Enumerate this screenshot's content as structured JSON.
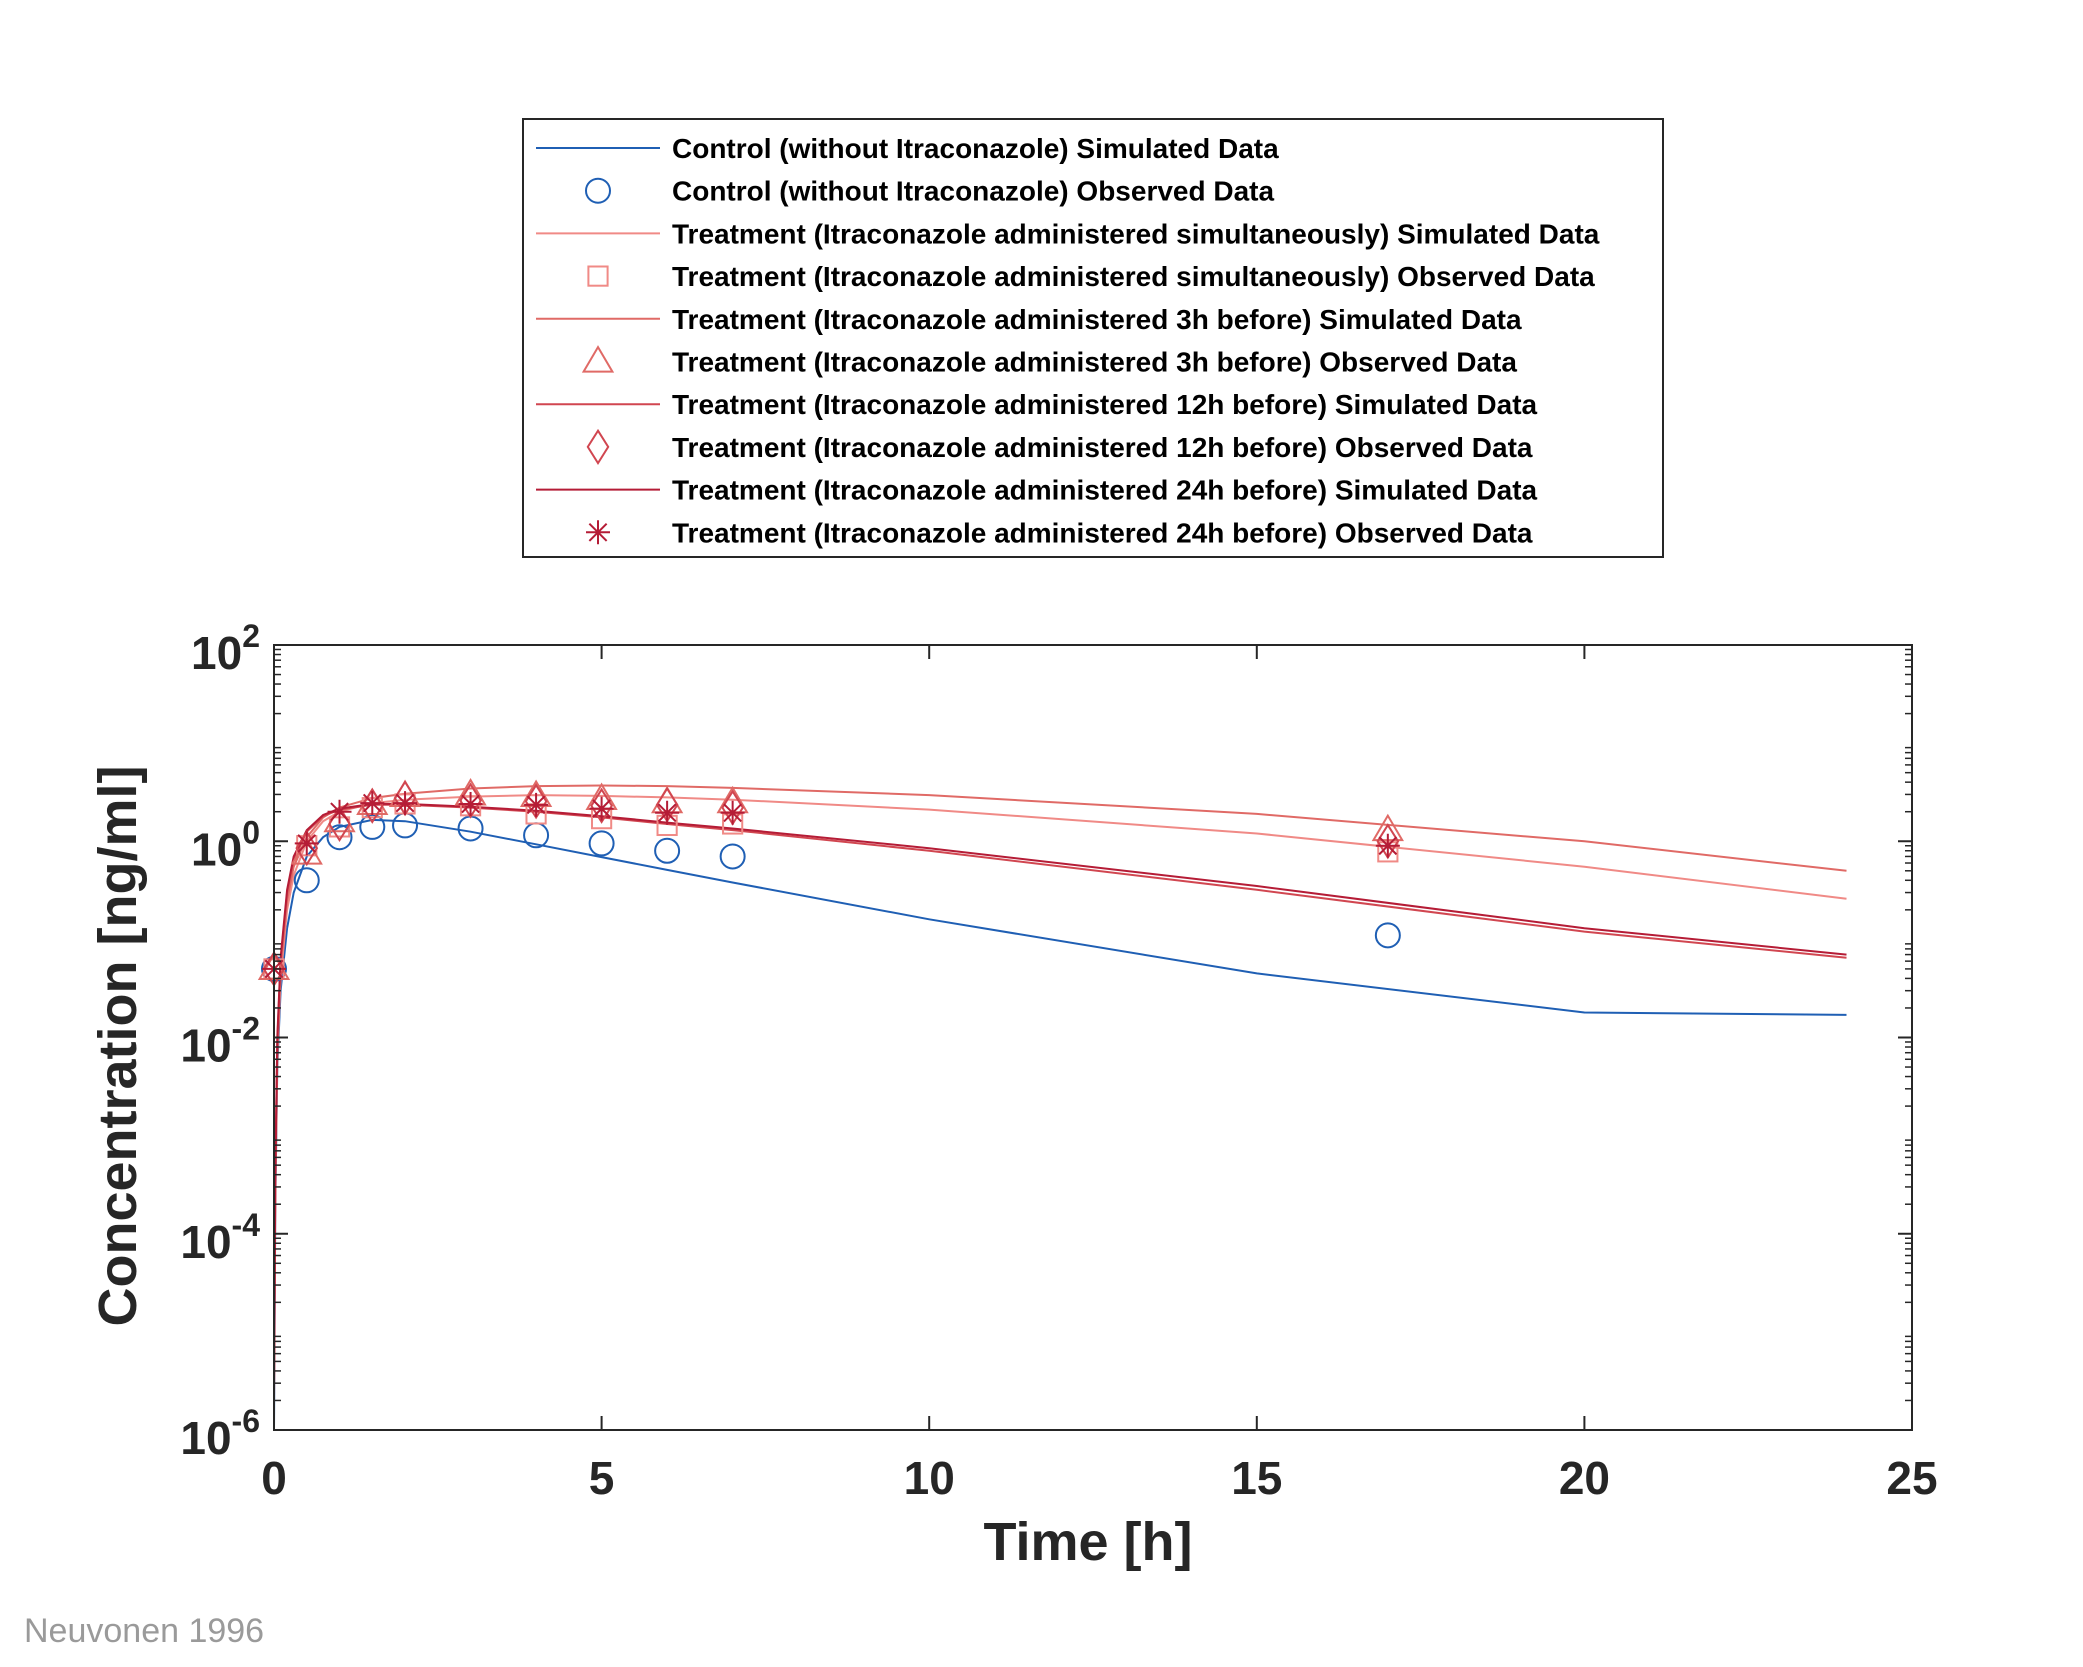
{
  "source_note": "Neuvonen 1996",
  "chart_data": {
    "type": "line",
    "title": "",
    "xlabel": "Time [h]",
    "ylabel": "Concentration [ng/ml]",
    "xlim": [
      0,
      25
    ],
    "ylim": [
      1e-06,
      100
    ],
    "yscale": "log",
    "grid": false,
    "legend_position": "top-outside",
    "x_ticks": [
      "0",
      "5",
      "10",
      "15",
      "20",
      "25"
    ],
    "y_ticks": [
      {
        "base": "10",
        "exp": "-6",
        "value": 1e-06
      },
      {
        "base": "10",
        "exp": "-4",
        "value": 0.0001
      },
      {
        "base": "10",
        "exp": "-2",
        "value": 0.01
      },
      {
        "base": "10",
        "exp": "0",
        "value": 1
      },
      {
        "base": "10",
        "exp": "2",
        "value": 100
      }
    ],
    "series": [
      {
        "name": "Control (without Itraconazole) Simulated Data",
        "kind": "line",
        "color": "#1f5fb4",
        "x": [
          0,
          0.02,
          0.05,
          0.1,
          0.2,
          0.3,
          0.5,
          0.75,
          1,
          1.5,
          2,
          3,
          4,
          5,
          6,
          7,
          10,
          15,
          20,
          24
        ],
        "y": [
          1e-06,
          0.0002,
          0.005,
          0.03,
          0.13,
          0.3,
          0.7,
          1.1,
          1.4,
          1.65,
          1.6,
          1.25,
          0.93,
          0.69,
          0.51,
          0.38,
          0.16,
          0.045,
          0.018,
          0.017
        ]
      },
      {
        "name": "Control (without Itraconazole) Observed Data",
        "kind": "marker",
        "marker": "circle",
        "color": "#1f5fb4",
        "x": [
          0,
          0.5,
          1,
          1.5,
          2,
          3,
          4,
          5,
          6,
          7,
          17
        ],
        "y": [
          0.05,
          0.4,
          1.1,
          1.4,
          1.45,
          1.35,
          1.15,
          0.95,
          0.8,
          0.7,
          0.11
        ]
      },
      {
        "name": "Treatment (Itraconazole administered simultaneously) Simulated Data",
        "kind": "line",
        "color": "#f08a86",
        "x": [
          0,
          0.02,
          0.05,
          0.1,
          0.2,
          0.3,
          0.5,
          0.75,
          1,
          1.5,
          2,
          3,
          4,
          5,
          6,
          7,
          10,
          15,
          20,
          24
        ],
        "y": [
          2e-06,
          0.00025,
          0.006,
          0.04,
          0.2,
          0.45,
          1.0,
          1.6,
          2.0,
          2.45,
          2.65,
          2.85,
          2.95,
          2.9,
          2.8,
          2.65,
          2.1,
          1.2,
          0.55,
          0.26
        ]
      },
      {
        "name": "Treatment (Itraconazole administered simultaneously) Observed Data",
        "kind": "marker",
        "marker": "square",
        "color": "#f08a86",
        "x": [
          0,
          0.5,
          1,
          1.5,
          2,
          3,
          4,
          5,
          6,
          7,
          17
        ],
        "y": [
          0.05,
          0.9,
          1.4,
          2.2,
          2.4,
          2.3,
          1.9,
          1.7,
          1.45,
          1.5,
          0.78
        ]
      },
      {
        "name": "Treatment (Itraconazole administered 3h before) Simulated Data",
        "kind": "line",
        "color": "#e06a66",
        "x": [
          0,
          0.02,
          0.05,
          0.1,
          0.2,
          0.3,
          0.5,
          0.75,
          1,
          1.5,
          2,
          3,
          4,
          5,
          6,
          7,
          10,
          15,
          20,
          24
        ],
        "y": [
          2e-06,
          0.0003,
          0.007,
          0.05,
          0.25,
          0.55,
          1.1,
          1.75,
          2.2,
          2.75,
          3.05,
          3.45,
          3.65,
          3.7,
          3.65,
          3.5,
          2.95,
          1.9,
          1.0,
          0.5
        ]
      },
      {
        "name": "Treatment (Itraconazole administered 3h before) Observed Data",
        "kind": "marker",
        "marker": "triangle",
        "color": "#e06a66",
        "x": [
          0,
          0.5,
          1,
          1.5,
          2,
          3,
          4,
          5,
          6,
          7,
          17
        ],
        "y": [
          0.05,
          0.75,
          1.6,
          2.4,
          2.9,
          3.0,
          2.9,
          2.7,
          2.5,
          2.5,
          1.3
        ]
      },
      {
        "name": "Treatment (Itraconazole administered 12h before) Simulated Data",
        "kind": "line",
        "color": "#d14650",
        "x": [
          0,
          0.02,
          0.05,
          0.1,
          0.2,
          0.3,
          0.5,
          0.75,
          1,
          1.5,
          2,
          3,
          4,
          5,
          6,
          7,
          10,
          15,
          20,
          24
        ],
        "y": [
          3e-06,
          0.0004,
          0.009,
          0.06,
          0.3,
          0.65,
          1.25,
          1.8,
          2.1,
          2.35,
          2.35,
          2.2,
          2.0,
          1.75,
          1.5,
          1.3,
          0.8,
          0.32,
          0.12,
          0.065
        ]
      },
      {
        "name": "Treatment (Itraconazole administered 12h before) Observed Data",
        "kind": "marker",
        "marker": "diamond",
        "color": "#d14650",
        "x": [
          0,
          0.5,
          1,
          1.5,
          2,
          3,
          4,
          5,
          6,
          7,
          17
        ],
        "y": [
          0.05,
          0.85,
          1.5,
          2.3,
          2.75,
          2.6,
          2.55,
          2.3,
          2.35,
          2.2,
          1.0
        ]
      },
      {
        "name": "Treatment (Itraconazole administered 24h before) Simulated Data",
        "kind": "line",
        "color": "#b51c36",
        "x": [
          0,
          0.02,
          0.05,
          0.1,
          0.2,
          0.3,
          0.5,
          0.75,
          1,
          1.5,
          2,
          3,
          4,
          5,
          6,
          7,
          10,
          15,
          20,
          24
        ],
        "y": [
          3e-06,
          0.0004,
          0.01,
          0.065,
          0.32,
          0.7,
          1.3,
          1.85,
          2.15,
          2.4,
          2.4,
          2.25,
          2.05,
          1.8,
          1.55,
          1.35,
          0.85,
          0.35,
          0.13,
          0.07
        ]
      },
      {
        "name": "Treatment (Itraconazole administered 24h before) Observed Data",
        "kind": "marker",
        "marker": "asterisk",
        "color": "#b51c36",
        "x": [
          0,
          0.5,
          1,
          1.5,
          2,
          3,
          4,
          5,
          6,
          7,
          17
        ],
        "y": [
          0.05,
          0.95,
          2.0,
          2.45,
          2.45,
          2.4,
          2.35,
          2.15,
          1.95,
          1.95,
          0.9
        ]
      }
    ]
  }
}
